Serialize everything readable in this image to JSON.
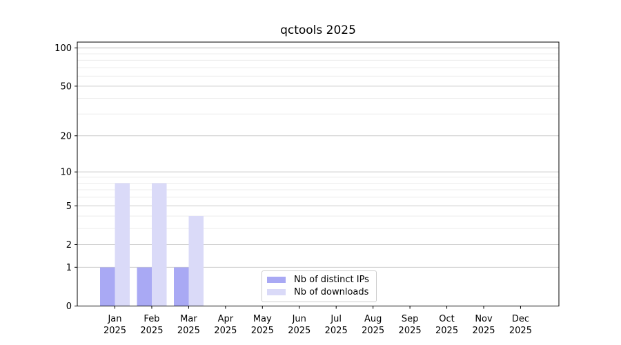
{
  "title": "qctools 2025",
  "legend": {
    "items": [
      {
        "label": "Nb of distinct IPs",
        "color": "#a9a9f4"
      },
      {
        "label": "Nb of downloads",
        "color": "#dadaf8"
      }
    ]
  },
  "chart_data": {
    "type": "bar",
    "title": "qctools 2025",
    "categories": [
      "Jan",
      "Feb",
      "Mar",
      "Apr",
      "May",
      "Jun",
      "Jul",
      "Aug",
      "Sep",
      "Oct",
      "Nov",
      "Dec"
    ],
    "x_sublabel": "2025",
    "series": [
      {
        "name": "Nb of distinct IPs",
        "color": "#a9a9f4",
        "values": [
          1,
          1,
          1,
          0,
          0,
          0,
          0,
          0,
          0,
          0,
          0,
          0
        ]
      },
      {
        "name": "Nb of downloads",
        "color": "#dadaf8",
        "values": [
          8,
          8,
          4,
          0,
          0,
          0,
          0,
          0,
          0,
          0,
          0,
          0
        ]
      }
    ],
    "xlabel": "",
    "ylabel": "",
    "yscale": "log1p",
    "ylim": [
      0,
      112
    ],
    "y_major_ticks": [
      0,
      1,
      2,
      5,
      10,
      20,
      50,
      100
    ],
    "y_minor_gridlines": [
      3,
      4,
      6,
      7,
      8,
      9,
      30,
      40,
      60,
      70,
      80,
      90
    ],
    "grid": "horizontal",
    "legend_position": "lower-center-inside",
    "colors": {
      "frame": "#000000",
      "grid_major": "#cccccc",
      "grid_major_top": "#b8b8b8",
      "grid_minor": "#ececec",
      "tick_text": "#000000"
    }
  }
}
